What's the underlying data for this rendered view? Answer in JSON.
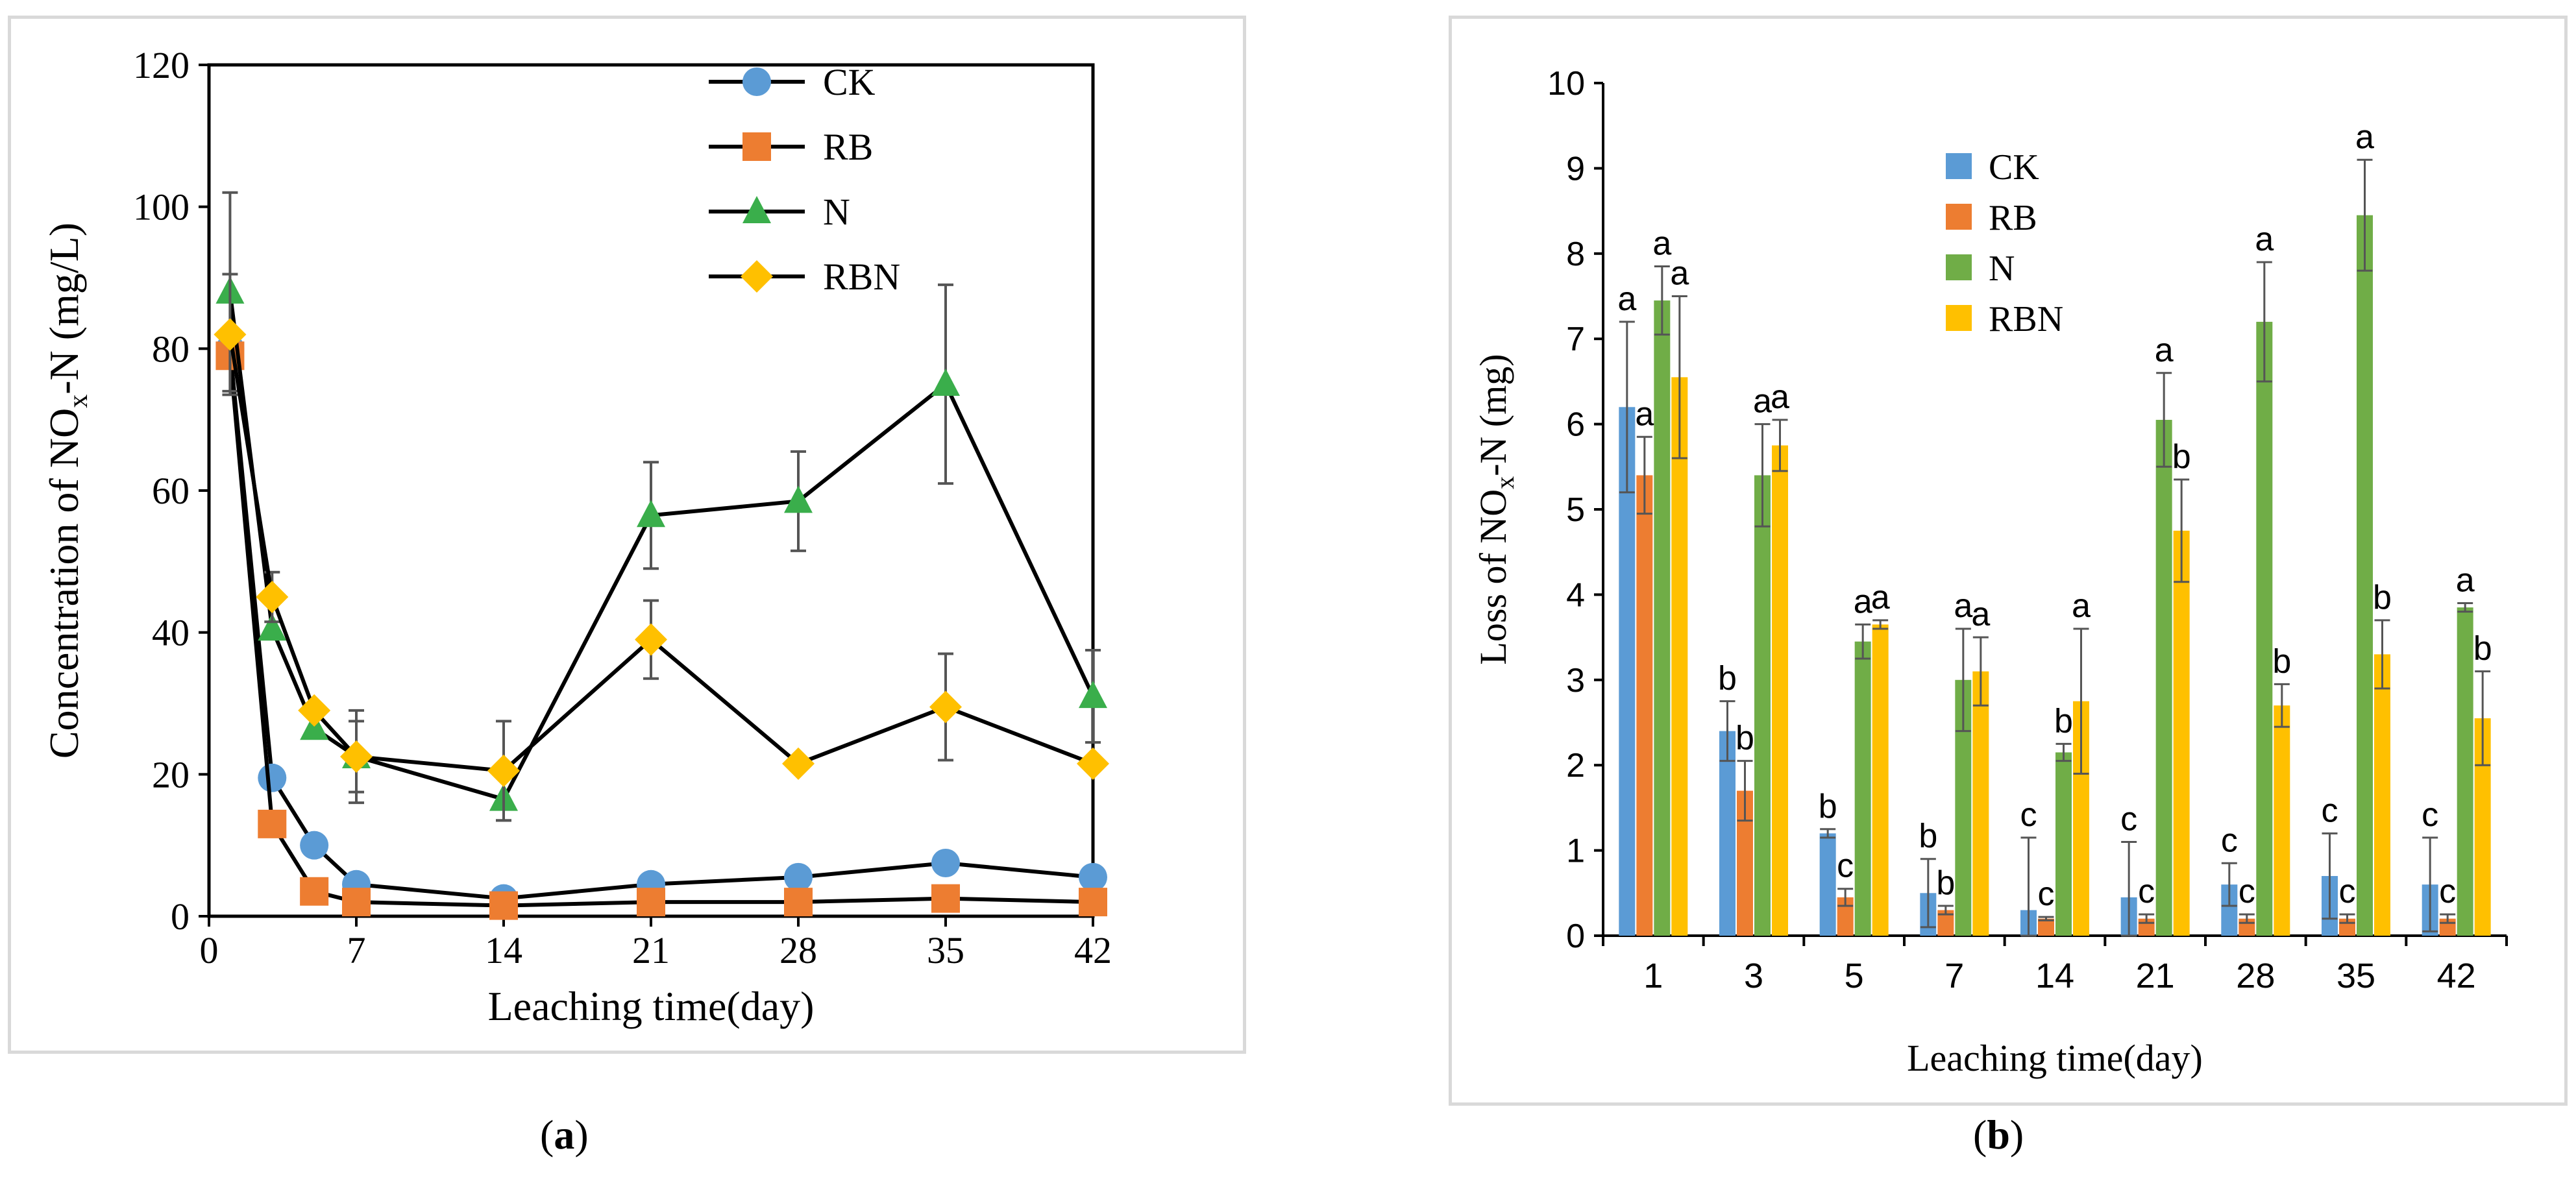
{
  "chart_data": [
    {
      "type": "line",
      "panel_label": "a",
      "xlabel": "Leaching time(day)",
      "ylabel_pre": "Concentration of  NO",
      "ylabel_sub": "x",
      "ylabel_post": "-N  (mg/L)",
      "xlim": [
        0,
        42
      ],
      "ylim": [
        0,
        120
      ],
      "xticks": [
        0,
        7,
        14,
        21,
        28,
        35,
        42
      ],
      "yticks": [
        0,
        20,
        40,
        60,
        80,
        100,
        120
      ],
      "x": [
        1,
        3,
        5,
        7,
        14,
        21,
        28,
        35,
        42
      ],
      "legend": [
        "CK",
        "RB",
        "N",
        "RBN"
      ],
      "series": [
        {
          "name": "CK",
          "color": "#5B9BD5",
          "marker": "circle",
          "values": [
            80,
            19.5,
            10,
            4.5,
            2.5,
            4.5,
            5.5,
            7.5,
            5.5
          ],
          "errors": [
            0,
            0,
            0,
            0,
            0,
            0,
            0,
            0,
            0
          ]
        },
        {
          "name": "RB",
          "color": "#ED7D31",
          "marker": "square",
          "values": [
            79,
            13,
            3.5,
            2,
            1.5,
            2,
            2,
            2.5,
            2
          ],
          "errors": [
            0,
            0,
            0,
            0,
            0,
            0,
            0,
            0,
            0
          ]
        },
        {
          "name": "N",
          "color": "#3AAE4B",
          "marker": "triangle",
          "values": [
            88,
            40.5,
            26.5,
            22.5,
            16.5,
            56.5,
            58.5,
            75,
            31
          ],
          "errors": [
            14,
            0,
            0,
            5,
            3,
            7.5,
            7,
            14,
            6.5
          ]
        },
        {
          "name": "RBN",
          "color": "#FFC000",
          "marker": "diamond",
          "values": [
            82,
            45,
            29,
            22.5,
            20.5,
            39,
            21.5,
            29.5,
            21.5
          ],
          "errors": [
            8.5,
            3.5,
            0,
            6.5,
            7,
            5.5,
            0,
            7.5,
            0
          ]
        }
      ]
    },
    {
      "type": "bar",
      "panel_label": "b",
      "xlabel": "Leaching time(day)",
      "ylabel_pre": "Loss of  NO",
      "ylabel_sub": "x",
      "ylabel_post": "-N  (mg)",
      "ylim": [
        0,
        10
      ],
      "yticks": [
        0,
        1,
        2,
        3,
        4,
        5,
        6,
        7,
        8,
        9,
        10
      ],
      "categories": [
        "1",
        "3",
        "5",
        "7",
        "14",
        "21",
        "28",
        "35",
        "42"
      ],
      "legend": [
        "CK",
        "RB",
        "N",
        "RBN"
      ],
      "series": [
        {
          "name": "CK",
          "color": "#5B9BD5",
          "values": [
            6.2,
            2.4,
            1.2,
            0.5,
            0.3,
            0.45,
            0.6,
            0.7,
            0.6
          ],
          "errors": [
            1.0,
            0.35,
            0.05,
            0.4,
            0.85,
            0.65,
            0.25,
            0.5,
            0.55
          ],
          "letters": [
            "a",
            "b",
            "b",
            "b",
            "c",
            "c",
            "c",
            "c",
            "c"
          ]
        },
        {
          "name": "RB",
          "color": "#ED7D31",
          "values": [
            5.4,
            1.7,
            0.45,
            0.3,
            0.2,
            0.2,
            0.2,
            0.2,
            0.2
          ],
          "errors": [
            0.45,
            0.35,
            0.1,
            0.05,
            0.02,
            0.05,
            0.05,
            0.05,
            0.05
          ],
          "letters": [
            "a",
            "b",
            "c",
            "b",
            "c",
            "c",
            "c",
            "c",
            "c"
          ]
        },
        {
          "name": "N",
          "color": "#70AD47",
          "values": [
            7.45,
            5.4,
            3.45,
            3.0,
            2.15,
            6.05,
            7.2,
            8.45,
            3.85
          ],
          "errors": [
            0.4,
            0.6,
            0.2,
            0.6,
            0.1,
            0.55,
            0.7,
            0.65,
            0.05
          ],
          "letters": [
            "a",
            "a",
            "a",
            "a",
            "b",
            "a",
            "a",
            "a",
            "a"
          ]
        },
        {
          "name": "RBN",
          "color": "#FFC000",
          "values": [
            6.55,
            5.75,
            3.65,
            3.1,
            2.75,
            4.75,
            2.7,
            3.3,
            2.55
          ],
          "errors": [
            0.95,
            0.3,
            0.05,
            0.4,
            0.85,
            0.6,
            0.25,
            0.4,
            0.55
          ],
          "letters": [
            "a",
            "a",
            "a",
            "a",
            "a",
            "b",
            "b",
            "b",
            "b"
          ]
        }
      ]
    }
  ]
}
